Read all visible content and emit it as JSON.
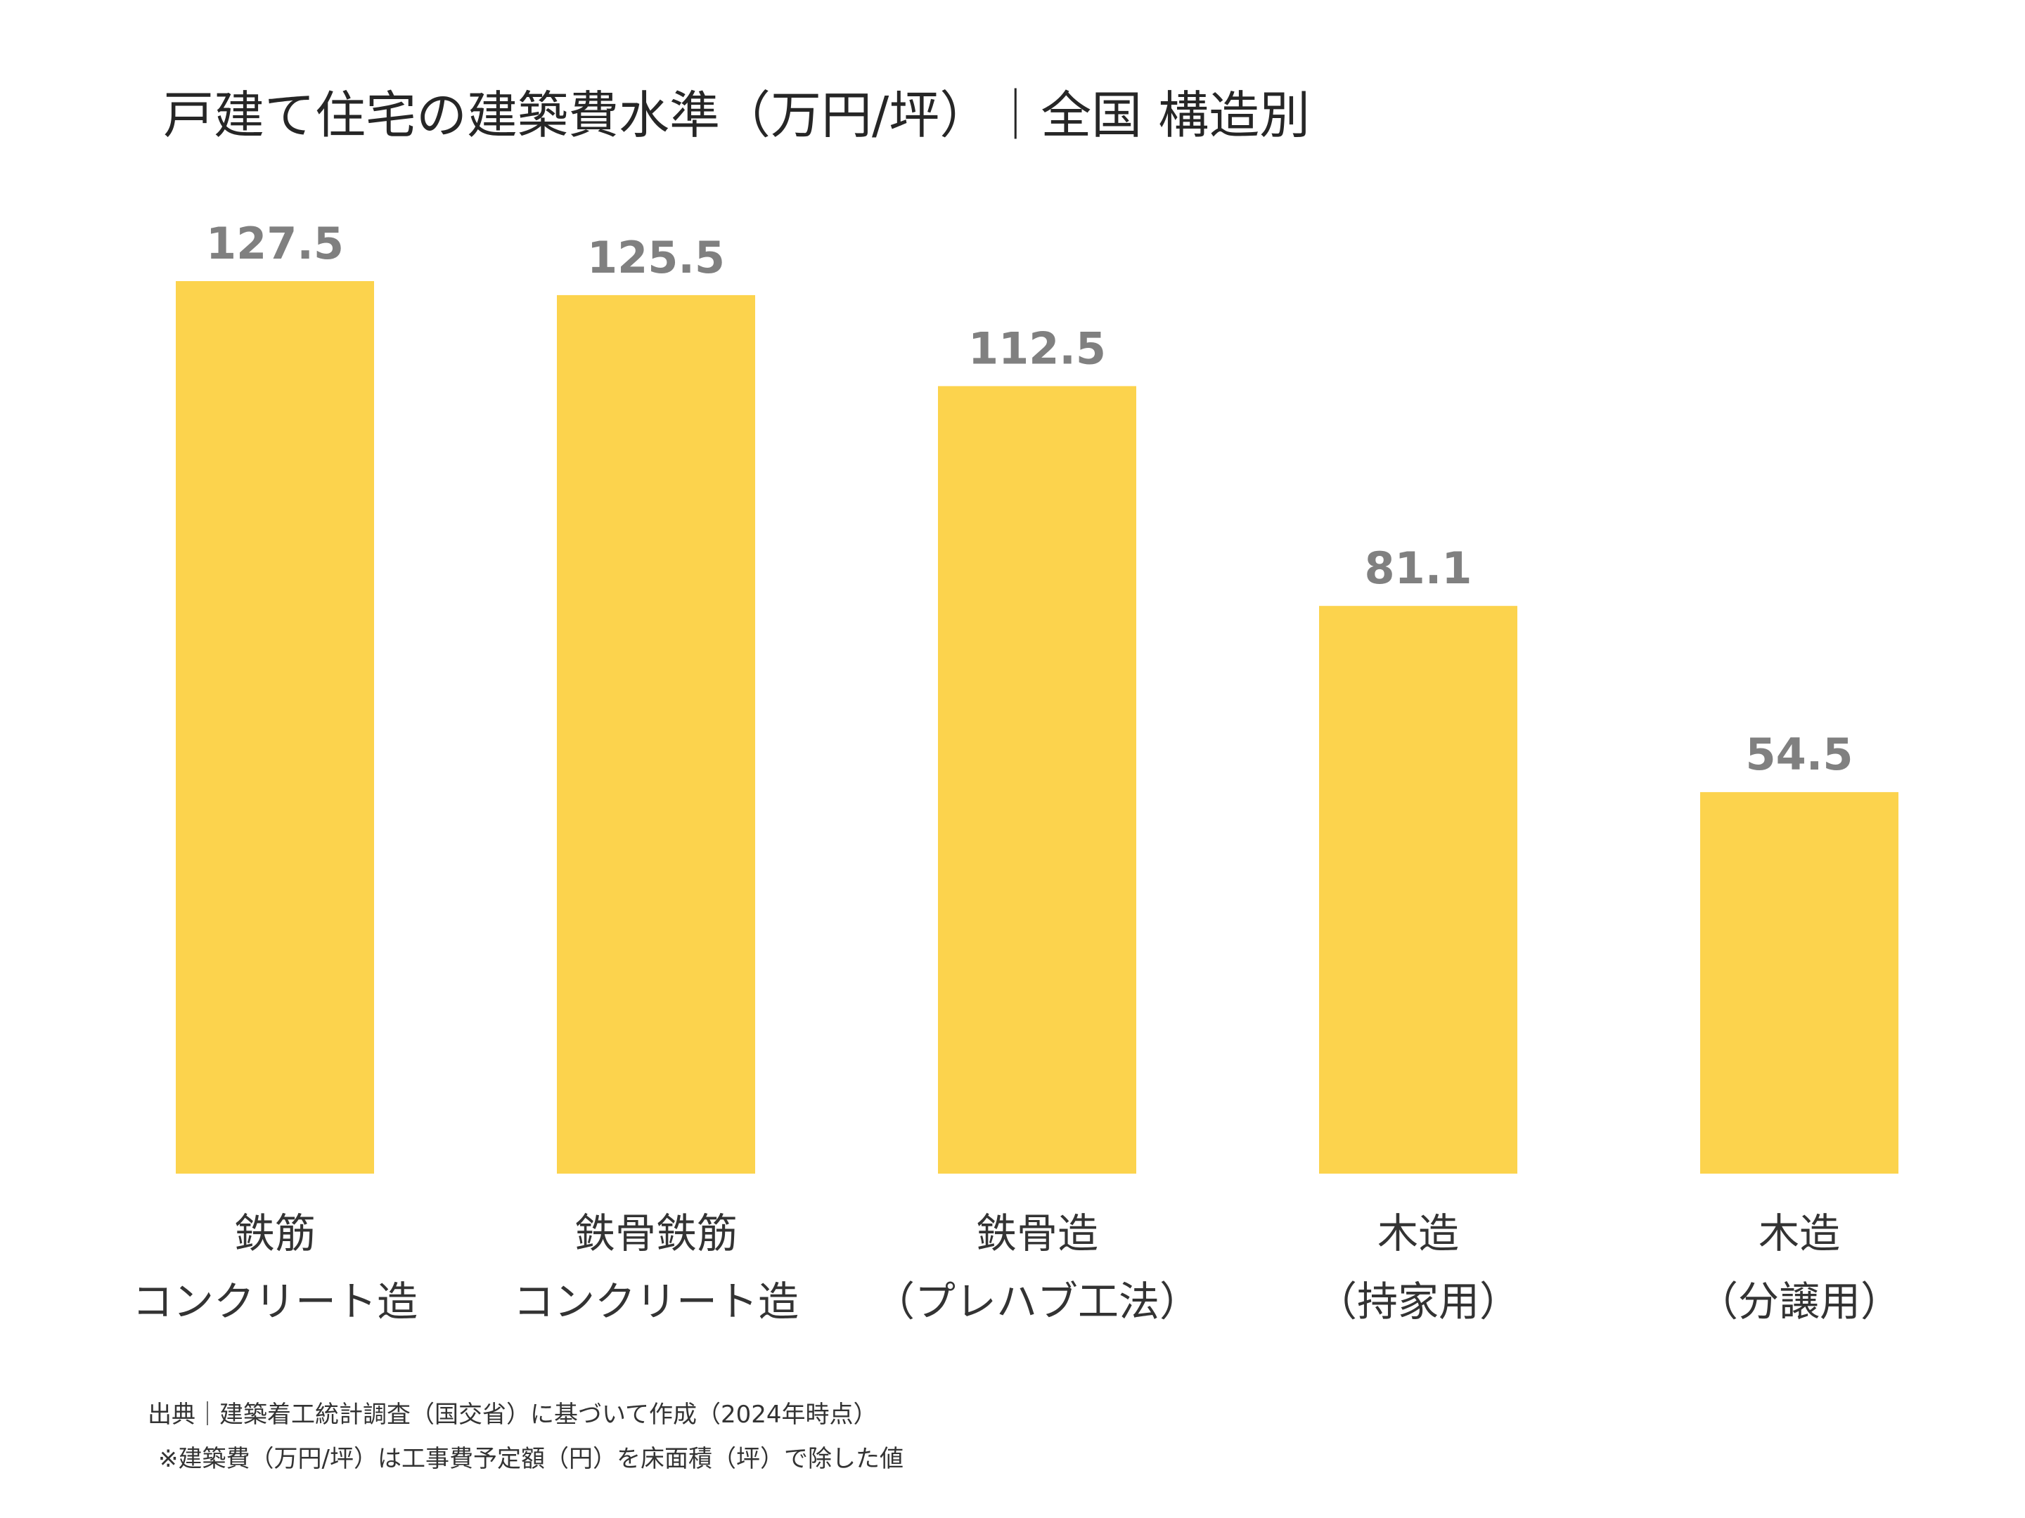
{
  "chart_data": {
    "type": "bar",
    "title": "戸建て住宅の建築費水準（万円/坪）｜全国 構造別",
    "categories": [
      [
        "鉄筋",
        "コンクリート造"
      ],
      [
        "鉄骨鉄筋",
        "コンクリート造"
      ],
      [
        "鉄骨造",
        "（プレハブ工法）"
      ],
      [
        "木造",
        "（持家用）"
      ],
      [
        "木造",
        "（分譲用）"
      ]
    ],
    "values": [
      127.5,
      125.5,
      112.5,
      81.1,
      54.5
    ],
    "value_labels": [
      "127.5",
      "125.5",
      "112.5",
      "81.1",
      "54.5"
    ],
    "ylim": [
      0,
      127.5
    ],
    "grid": false,
    "legend": "none",
    "bar_color": "#FCD34D"
  },
  "footnotes": {
    "source": "出典｜建築着工統計調査（国交省）に基づいて作成（2024年時点）",
    "note": "※建築費（万円/坪）は工事費予定額（円）を床面積（坪）で除した値"
  }
}
